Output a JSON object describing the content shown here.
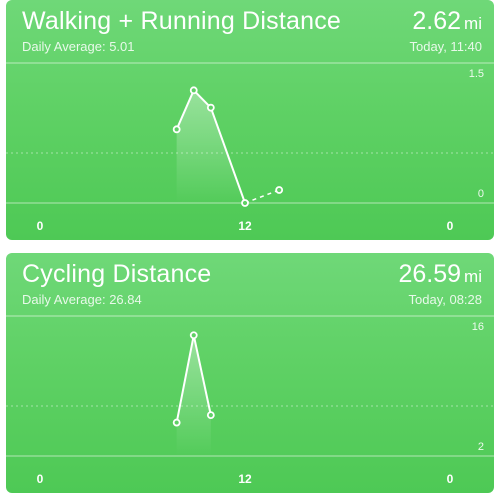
{
  "colors": {
    "card_green": "#5fd165",
    "text": "#ffffff"
  },
  "cards": [
    {
      "title": "Walking + Running Distance",
      "subtitle": "Daily Average: 5.01",
      "value": "2.62",
      "unit": "mi",
      "timestamp": "Today, 11:40"
    },
    {
      "title": "Cycling Distance",
      "subtitle": "Daily Average: 26.84",
      "value": "26.59",
      "unit": "mi",
      "timestamp": "Today, 08:28"
    }
  ],
  "chart_data": [
    {
      "type": "line",
      "x_tick_labels": [
        "0",
        "12",
        "0"
      ],
      "xlim": [
        0,
        24
      ],
      "y_tick_labels": [
        "1.5",
        "0"
      ],
      "ylim": [
        0,
        1.5
      ],
      "x": [
        8,
        9,
        10,
        12,
        14
      ],
      "y": [
        0.85,
        1.3,
        1.1,
        0.0,
        0.15
      ],
      "solid_until_index": 3,
      "dashed_tail": true
    },
    {
      "type": "line",
      "x_tick_labels": [
        "0",
        "12",
        "0"
      ],
      "xlim": [
        0,
        24
      ],
      "y_tick_labels": [
        "16",
        "2"
      ],
      "ylim": [
        2,
        16
      ],
      "x": [
        8,
        9,
        10
      ],
      "y": [
        5.6,
        15.0,
        6.4
      ],
      "solid_until_index": 2,
      "dashed_tail": false
    }
  ]
}
